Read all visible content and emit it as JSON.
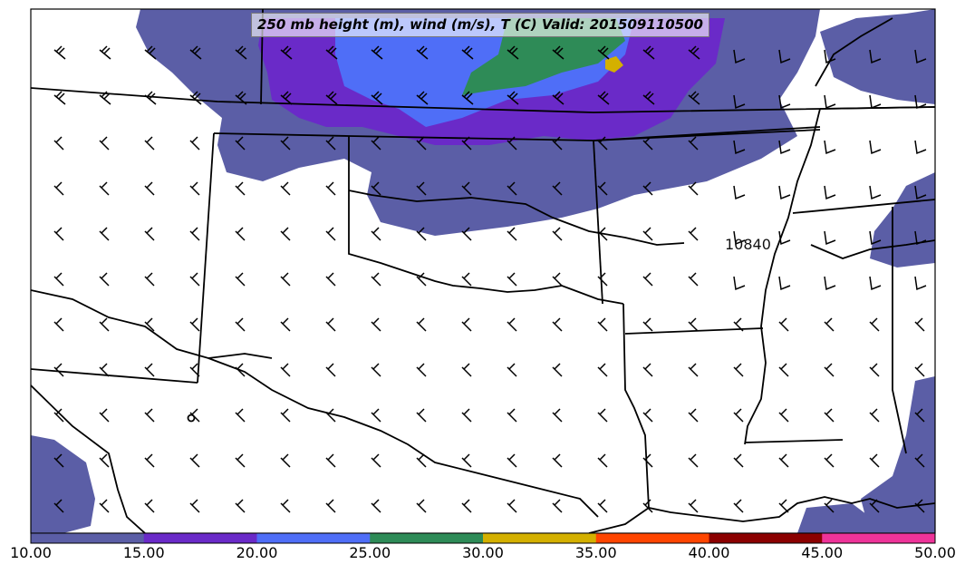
{
  "title": "250 mb height (m), wind (m/s), T (C) Valid: 201509110500",
  "contour_label": "10840",
  "colorbar": {
    "ticks": [
      "10.00",
      "15.00",
      "20.00",
      "25.00",
      "30.00",
      "35.00",
      "40.00",
      "45.00",
      "50.00"
    ],
    "colors": [
      "#5b5ea6",
      "#6a2ac8",
      "#4f6ef7",
      "#2e8b57",
      "#d4b000",
      "#ff4500",
      "#8b0000",
      "#ee3399"
    ]
  },
  "fill_colors": {
    "band_10_15": "#5b5ea6",
    "band_15_20": "#6a2ac8",
    "band_20_25": "#4f6ef7",
    "band_25_30": "#2e8b57",
    "band_30_35": "#d4b000"
  }
}
